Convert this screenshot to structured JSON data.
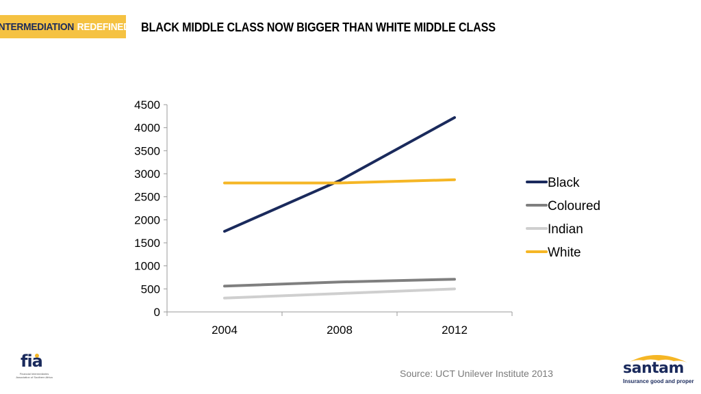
{
  "header": {
    "badge_part1": "INTERMEDIATION",
    "badge_part2": "REDEFINED",
    "title": "BLACK MIDDLE CLASS NOW BIGGER THAN WHITE MIDDLE CLASS"
  },
  "footer": {
    "source": "Source: UCT Unilever Institute 2013",
    "fia_logo_text": "fia",
    "fia_subtitle": "Financial Intermediaries Association of Southern Africa",
    "santam_name": "santam",
    "santam_tagline": "Insurance good and proper"
  },
  "colors": {
    "badge": "#f5c242",
    "navy": "#1a2a5c"
  },
  "chart_data": {
    "type": "line",
    "title": "",
    "xlabel": "",
    "ylabel": "",
    "categories": [
      "2004",
      "2008",
      "2012"
    ],
    "ylim": [
      0,
      4500
    ],
    "yticks": [
      0,
      500,
      1000,
      1500,
      2000,
      2500,
      3000,
      3500,
      4000,
      4500
    ],
    "grid": false,
    "legend_position": "right",
    "series": [
      {
        "name": "Black",
        "values": [
          1750,
          2850,
          4220
        ],
        "color": "#1a2a5c"
      },
      {
        "name": "Coloured",
        "values": [
          560,
          650,
          710
        ],
        "color": "#7f7f7f"
      },
      {
        "name": "Indian",
        "values": [
          300,
          400,
          500
        ],
        "color": "#cfcfcf"
      },
      {
        "name": "White",
        "values": [
          2800,
          2800,
          2870
        ],
        "color": "#f5b625"
      }
    ]
  }
}
